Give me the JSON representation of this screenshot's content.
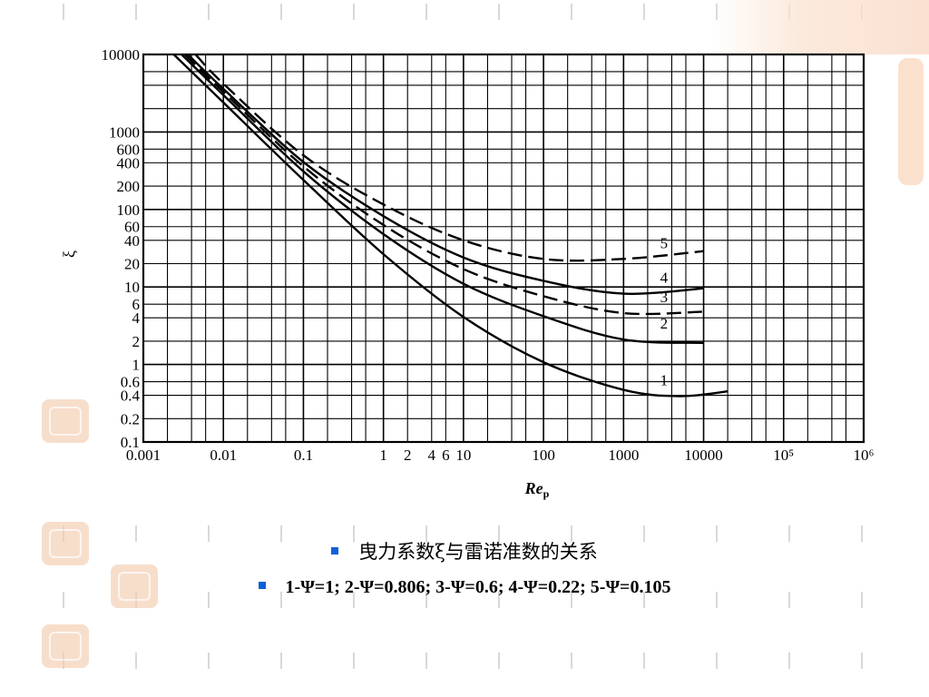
{
  "slide": {
    "caption_line1": "曳力系数ξ与雷诺准数的关系",
    "caption_line2": "1-Ψ=1; 2-Ψ=0.806; 3-Ψ=0.6; 4-Ψ=0.22; 5-Ψ=0.105",
    "bullet_color": "#1060d8"
  },
  "chart_data": {
    "type": "line",
    "xlabel": "Rep",
    "ylabel": "ξ",
    "x_scale": "log",
    "y_scale": "log",
    "xlim": [
      0.001,
      1000000
    ],
    "ylim": [
      0.1,
      10000
    ],
    "grid": true,
    "x_tick_labels": [
      {
        "value": 0.001,
        "label": "0.001"
      },
      {
        "value": 0.01,
        "label": "0.01"
      },
      {
        "value": 0.1,
        "label": "0.1"
      },
      {
        "value": 1,
        "label": "1"
      },
      {
        "value": 2,
        "label": "2"
      },
      {
        "value": 4,
        "label": "4"
      },
      {
        "value": 6,
        "label": "6"
      },
      {
        "value": 10,
        "label": "10"
      },
      {
        "value": 100,
        "label": "100"
      },
      {
        "value": 1000,
        "label": "1000"
      },
      {
        "value": 10000,
        "label": "10000"
      },
      {
        "value": 100000,
        "label": "10⁵"
      },
      {
        "value": 1000000,
        "label": "10⁶"
      }
    ],
    "y_tick_labels": [
      {
        "value": 10000,
        "label": "10000"
      },
      {
        "value": 1000,
        "label": "1000"
      },
      {
        "value": 600,
        "label": "600"
      },
      {
        "value": 400,
        "label": "400"
      },
      {
        "value": 200,
        "label": "200"
      },
      {
        "value": 100,
        "label": "100"
      },
      {
        "value": 60,
        "label": "60"
      },
      {
        "value": 40,
        "label": "40"
      },
      {
        "value": 20,
        "label": "20"
      },
      {
        "value": 10,
        "label": "10"
      },
      {
        "value": 6,
        "label": "6"
      },
      {
        "value": 4,
        "label": "4"
      },
      {
        "value": 2,
        "label": "2"
      },
      {
        "value": 1,
        "label": "1"
      },
      {
        "value": 0.6,
        "label": "0.6"
      },
      {
        "value": 0.4,
        "label": "0.4"
      },
      {
        "value": 0.2,
        "label": "0.2"
      },
      {
        "value": 0.1,
        "label": "0.1"
      }
    ],
    "series": [
      {
        "name": "1",
        "dash": false,
        "points": [
          [
            0.0024,
            10000
          ],
          [
            0.01,
            2400
          ],
          [
            0.1,
            240
          ],
          [
            1,
            26.5
          ],
          [
            10,
            4.1
          ],
          [
            100,
            1.07
          ],
          [
            1000,
            0.47
          ],
          [
            5000,
            0.39
          ],
          [
            20000,
            0.45
          ]
        ]
      },
      {
        "name": "2",
        "dash": false,
        "points": [
          [
            0.003,
            10000
          ],
          [
            0.01,
            3000
          ],
          [
            0.1,
            310
          ],
          [
            1,
            48
          ],
          [
            10,
            11
          ],
          [
            100,
            4.2
          ],
          [
            1000,
            2.1
          ],
          [
            10000,
            1.9
          ]
        ]
      },
      {
        "name": "3",
        "dash": true,
        "points": [
          [
            0.0033,
            10000
          ],
          [
            0.01,
            3300
          ],
          [
            0.1,
            360
          ],
          [
            1,
            63
          ],
          [
            10,
            17
          ],
          [
            100,
            7.6
          ],
          [
            1000,
            4.6
          ],
          [
            10000,
            4.8
          ]
        ]
      },
      {
        "name": "4",
        "dash": false,
        "points": [
          [
            0.0036,
            10000
          ],
          [
            0.01,
            3600
          ],
          [
            0.1,
            410
          ],
          [
            1,
            82
          ],
          [
            10,
            24
          ],
          [
            100,
            12
          ],
          [
            1000,
            8.2
          ],
          [
            10000,
            9.6
          ]
        ]
      },
      {
        "name": "5",
        "dash": true,
        "points": [
          [
            0.0045,
            10000
          ],
          [
            0.01,
            4200
          ],
          [
            0.1,
            500
          ],
          [
            1,
            116
          ],
          [
            10,
            40
          ],
          [
            100,
            23
          ],
          [
            1000,
            23
          ],
          [
            10000,
            29
          ]
        ]
      }
    ]
  }
}
